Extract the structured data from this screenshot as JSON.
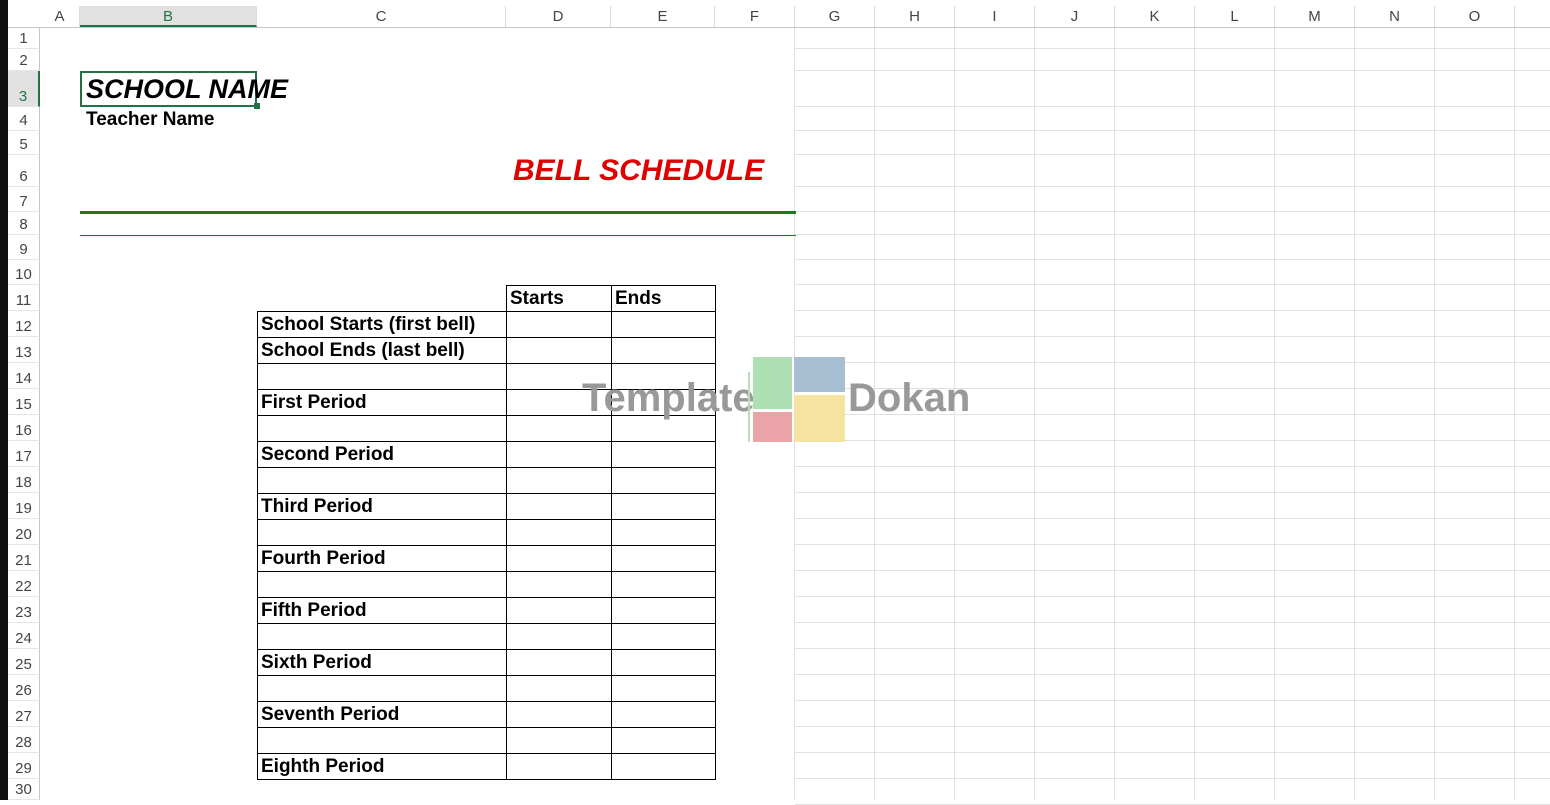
{
  "sheet": {
    "columns": [
      "A",
      "B",
      "C",
      "D",
      "E",
      "F",
      "G",
      "H",
      "I",
      "J",
      "K",
      "L",
      "M",
      "N",
      "O"
    ],
    "selected_column": "B",
    "selected_row": 3,
    "row_count": 30
  },
  "header": {
    "school_name": "SCHOOL NAME",
    "teacher_name": "Teacher Name",
    "title": "BELL SCHEDULE",
    "title_color": "#e00000",
    "rule_color": "#1a7a1a"
  },
  "table": {
    "columns": [
      "Starts",
      "Ends"
    ],
    "rows": [
      "School Starts (first bell)",
      "School Ends (last bell)",
      "",
      "First Period",
      "",
      "Second Period",
      "",
      "Third Period",
      "",
      "Fourth Period",
      "",
      "Fifth Period",
      "",
      "Sixth Period",
      "",
      "Seventh Period",
      "",
      "Eighth Period"
    ]
  },
  "watermark": {
    "left": "Template",
    "right": "Dokan"
  }
}
